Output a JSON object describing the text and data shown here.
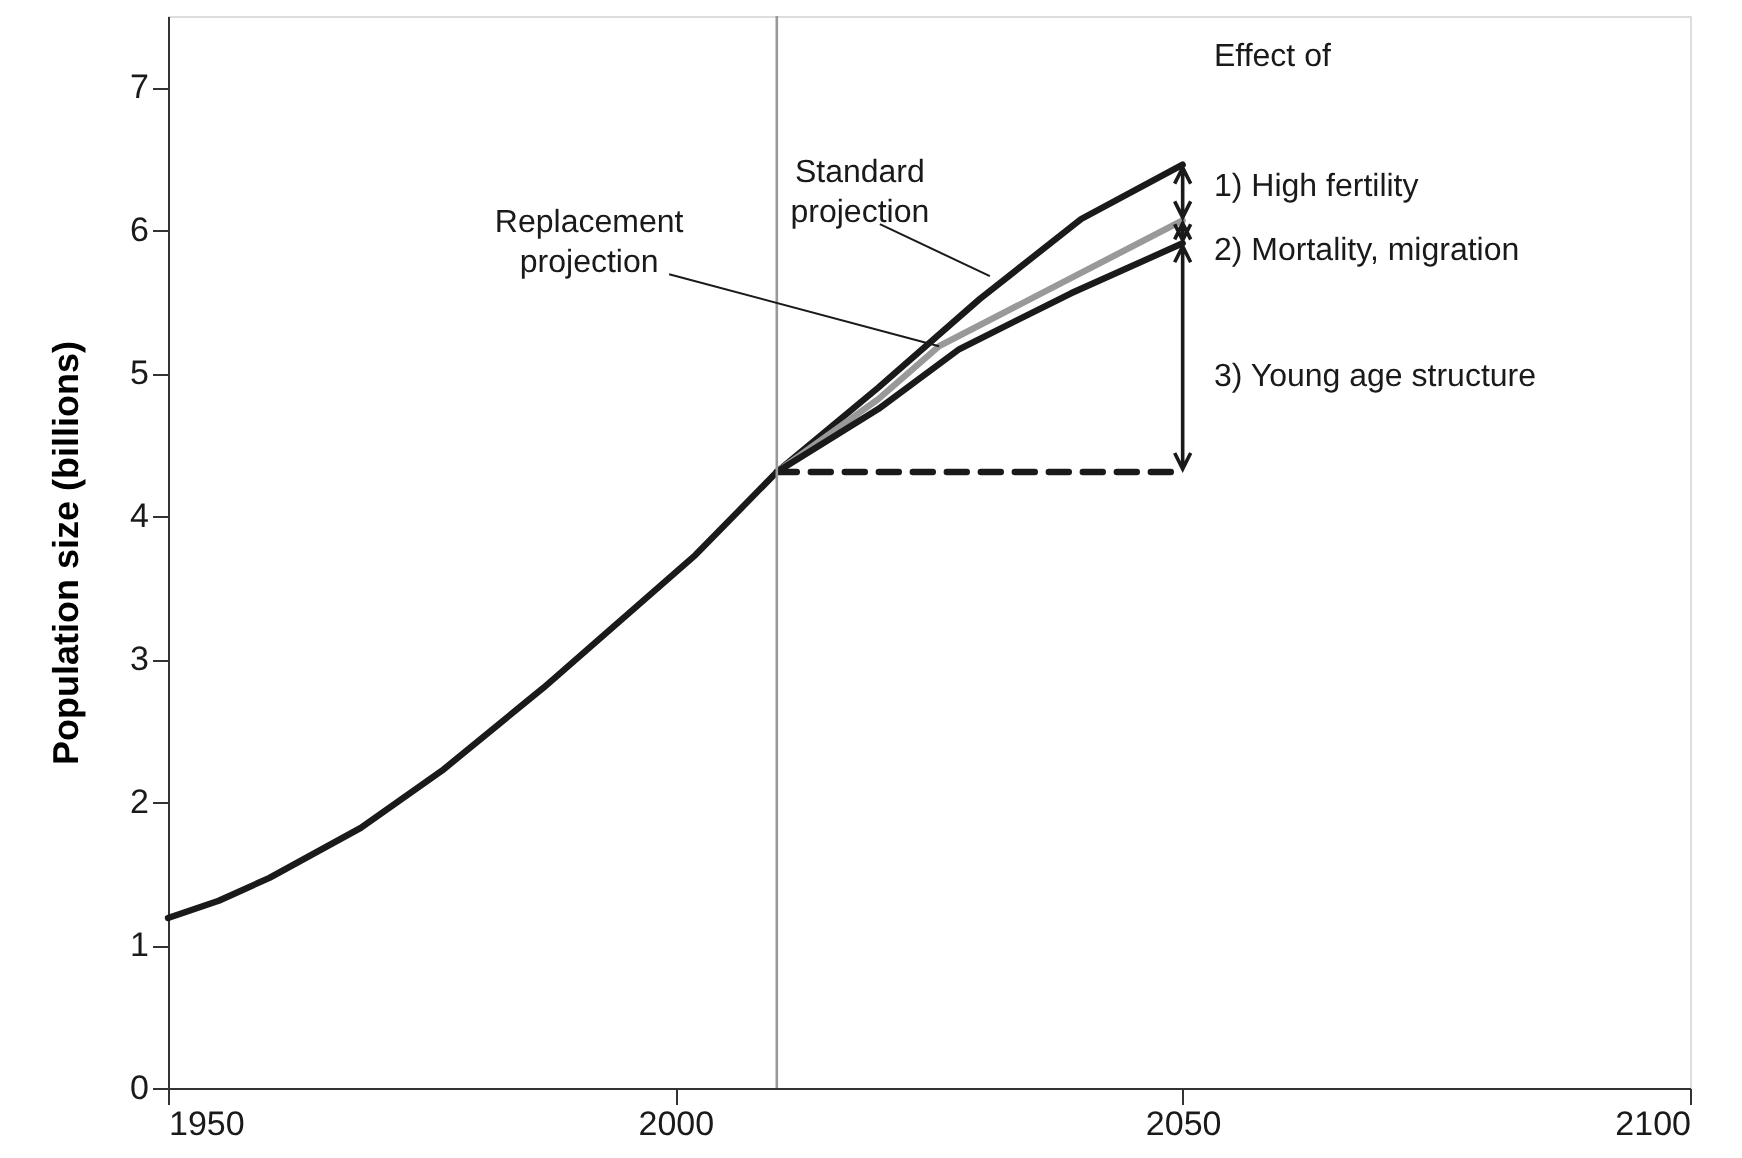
{
  "chart_data": {
    "type": "line",
    "ylabel": "Population size (billions)",
    "xlim": [
      1950,
      2100
    ],
    "xticks": [
      1950,
      2000,
      2050,
      2100
    ],
    "ylim": [
      0,
      7.5
    ],
    "yticks": [
      0,
      1,
      2,
      3,
      4,
      5,
      6,
      7
    ],
    "grid": false,
    "line_style": "solid",
    "marker": "none",
    "series": [
      {
        "color": "#1a1a1a",
        "x": [
          1950,
          1955,
          1960,
          1969,
          1977,
          1987,
          2002,
          2010,
          2020,
          2030,
          2040,
          2050
        ],
        "values": [
          1.19,
          1.31,
          1.47,
          1.82,
          2.22,
          2.8,
          3.73,
          4.31,
          4.9,
          5.52,
          6.08,
          6.46
        ]
      },
      {
        "color": "#999999",
        "x": [
          2010,
          2020,
          2026,
          2035,
          2050
        ],
        "values": [
          4.31,
          4.82,
          5.19,
          5.52,
          6.07
        ]
      },
      {
        "color": "#1a1a1a",
        "x": [
          2010,
          2020,
          2028,
          2039,
          2050
        ],
        "values": [
          4.31,
          4.75,
          5.17,
          5.56,
          5.91
        ]
      },
      {
        "color": "#1a1a1a",
        "line_style": "dashed",
        "x": [
          2010,
          2050
        ],
        "values": [
          4.31,
          4.31
        ]
      }
    ],
    "ref_lines": [
      {
        "axis": "x",
        "value": 2010,
        "color": "#999999"
      }
    ],
    "annotations": [
      {
        "text": "Standard\nprojection",
        "x": 2031,
        "y": 5.68
      },
      {
        "text": "Replacement\nprojection",
        "x": 2026,
        "y": 5.19
      },
      "Effect of",
      "1) High fertility",
      "2) Mortality, migration",
      "3) Young age structure"
    ]
  }
}
